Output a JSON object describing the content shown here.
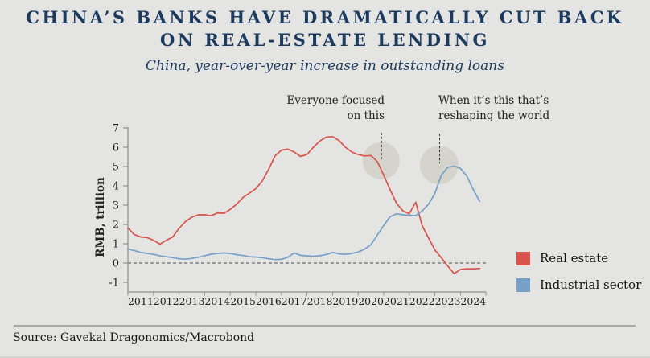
{
  "header": {
    "title_line1": "CHINA’S BANKS HAVE DRAMATICALLY CUT BACK",
    "title_line2": "ON REAL-ESTATE LENDING",
    "subtitle": "China, year-over-year increase in outstanding loans"
  },
  "footer": {
    "source": "Source: Gavekal Dragonomics/Macrobond"
  },
  "colors": {
    "background": "#e4e4e2",
    "title_navy": "#1b3a5e",
    "real_estate_red": "#d9534b",
    "industrial_blue": "#76a0c7",
    "highlight_gray": "#c6c6ba",
    "axis_gray": "#8f8f8f"
  },
  "legend": {
    "items": [
      {
        "label": "Real estate",
        "color": "#d9534b"
      },
      {
        "label": "Industrial sector",
        "color": "#76a0c7"
      }
    ]
  },
  "chart_data": {
    "type": "line",
    "title": "China, year-over-year increase in outstanding loans",
    "xlabel": "",
    "ylabel": "RMB, trillion",
    "ylim": [
      -1,
      7
    ],
    "yticks": [
      7,
      6,
      5,
      4,
      3,
      2,
      1,
      0,
      -1
    ],
    "xtick_labels": [
      "2011",
      "2012",
      "2013",
      "2014",
      "2015",
      "2016",
      "2017",
      "2018",
      "2019",
      "2020",
      "2021",
      "2022",
      "2023",
      "2024"
    ],
    "grid": false,
    "zero_line_dashed": true,
    "legend_position": "right",
    "x": [
      2011.0,
      2011.25,
      2011.5,
      2011.75,
      2012.0,
      2012.25,
      2012.5,
      2012.75,
      2013.0,
      2013.25,
      2013.5,
      2013.75,
      2014.0,
      2014.25,
      2014.5,
      2014.75,
      2015.0,
      2015.25,
      2015.5,
      2015.75,
      2016.0,
      2016.25,
      2016.5,
      2016.75,
      2017.0,
      2017.25,
      2017.5,
      2017.75,
      2018.0,
      2018.25,
      2018.5,
      2018.75,
      2019.0,
      2019.25,
      2019.5,
      2019.75,
      2020.0,
      2020.25,
      2020.5,
      2020.75,
      2021.0,
      2021.25,
      2021.5,
      2021.75,
      2022.0,
      2022.25,
      2022.5,
      2022.75,
      2023.0,
      2023.25,
      2023.5,
      2023.75,
      2024.0,
      2024.25,
      2024.5,
      2024.75
    ],
    "series": [
      {
        "name": "Real estate",
        "color": "#d9534b",
        "values": [
          1.82,
          1.48,
          1.35,
          1.32,
          1.18,
          0.98,
          1.18,
          1.35,
          1.8,
          2.15,
          2.38,
          2.5,
          2.5,
          2.45,
          2.6,
          2.58,
          2.78,
          3.05,
          3.4,
          3.62,
          3.85,
          4.25,
          4.85,
          5.55,
          5.85,
          5.9,
          5.75,
          5.52,
          5.62,
          6.0,
          6.32,
          6.52,
          6.55,
          6.35,
          6.0,
          5.75,
          5.62,
          5.55,
          5.57,
          5.25,
          4.55,
          3.8,
          3.1,
          2.7,
          2.56,
          3.15,
          1.95,
          1.3,
          0.68,
          0.28,
          -0.15,
          -0.55,
          -0.33,
          -0.3,
          -0.3,
          -0.28
        ]
      },
      {
        "name": "Industrial sector",
        "color": "#76a0c7",
        "values": [
          0.73,
          0.65,
          0.55,
          0.5,
          0.45,
          0.37,
          0.33,
          0.28,
          0.22,
          0.2,
          0.24,
          0.3,
          0.38,
          0.46,
          0.5,
          0.52,
          0.5,
          0.43,
          0.39,
          0.33,
          0.31,
          0.28,
          0.22,
          0.18,
          0.19,
          0.3,
          0.52,
          0.4,
          0.37,
          0.35,
          0.38,
          0.44,
          0.55,
          0.48,
          0.45,
          0.5,
          0.57,
          0.72,
          0.95,
          1.45,
          1.95,
          2.4,
          2.55,
          2.5,
          2.48,
          2.46,
          2.7,
          3.05,
          3.6,
          4.55,
          4.95,
          5.02,
          4.9,
          4.5,
          3.8,
          3.2
        ]
      }
    ],
    "annotations": [
      {
        "text": "Everyone focused\non this",
        "x_year": 2020.9,
        "circle_center_value": 5.3,
        "circle_radius_px": 23,
        "pointer_from_value": 6.75
      },
      {
        "text": "When it’s this that’s\nreshaping the world",
        "x_year": 2023.17,
        "circle_center_value": 5.08,
        "circle_radius_px": 24,
        "pointer_from_value": 6.7
      }
    ]
  }
}
